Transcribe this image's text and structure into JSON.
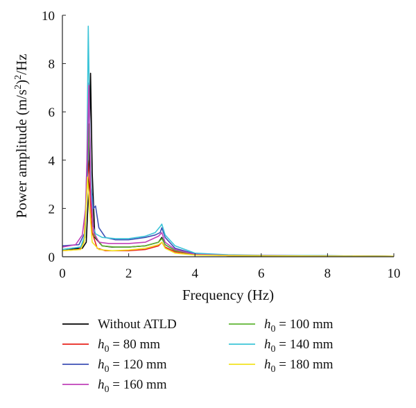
{
  "chart_data": {
    "type": "line",
    "xlabel": "Frequency (Hz)",
    "ylabel": "Power amplitude (m/s²)²/Hz",
    "xlim": [
      0,
      10
    ],
    "ylim": [
      0,
      10
    ],
    "xticks": [
      "0",
      "2",
      "4",
      "6",
      "8",
      "10"
    ],
    "yticks": [
      "0",
      "2",
      "4",
      "6",
      "8",
      "10"
    ],
    "grid": false,
    "legend_position": "bottom",
    "series": [
      {
        "name": "Without ATLD",
        "label_prefix": "",
        "label_sub": "",
        "label_suffix": "Without ATLD",
        "color": "#000000",
        "x": [
          0,
          0.6,
          0.72,
          0.8,
          0.85,
          0.9,
          0.98,
          1.2,
          1.5,
          2.0,
          2.5,
          2.9,
          3.0,
          3.1,
          3.4,
          4.0,
          5.0,
          6.0,
          8.0,
          10.0
        ],
        "y": [
          0.3,
          0.35,
          0.6,
          3.0,
          7.6,
          3.5,
          0.8,
          0.45,
          0.4,
          0.4,
          0.45,
          0.6,
          0.8,
          0.5,
          0.25,
          0.1,
          0.05,
          0.04,
          0.03,
          0.02
        ]
      },
      {
        "name": "h0 = 80 mm",
        "label_prefix": "h",
        "label_sub": "0",
        "label_suffix": " = 80 mm",
        "color": "#e8221c",
        "x": [
          0,
          0.5,
          0.65,
          0.72,
          0.77,
          0.82,
          0.9,
          1.05,
          1.3,
          2.0,
          2.5,
          2.9,
          3.0,
          3.1,
          3.4,
          4.0,
          5.0,
          6.0,
          8.0,
          10.0
        ],
        "y": [
          0.25,
          0.3,
          0.6,
          2.5,
          4.0,
          3.0,
          1.0,
          0.35,
          0.25,
          0.25,
          0.3,
          0.45,
          0.6,
          0.4,
          0.2,
          0.1,
          0.05,
          0.04,
          0.03,
          0.02
        ]
      },
      {
        "name": "h0 = 100 mm",
        "label_prefix": "h",
        "label_sub": "0",
        "label_suffix": " = 100 mm",
        "color": "#5fb532",
        "x": [
          0,
          0.55,
          0.68,
          0.75,
          0.8,
          0.86,
          0.95,
          1.2,
          1.6,
          2.0,
          2.5,
          2.9,
          3.0,
          3.1,
          3.4,
          4.0,
          5.0,
          6.0,
          8.0,
          10.0
        ],
        "y": [
          0.3,
          0.4,
          0.8,
          3.2,
          5.5,
          3.0,
          0.9,
          0.45,
          0.4,
          0.4,
          0.45,
          0.6,
          0.75,
          0.5,
          0.25,
          0.1,
          0.05,
          0.04,
          0.03,
          0.02
        ]
      },
      {
        "name": "h0 = 120 mm",
        "label_prefix": "h",
        "label_sub": "0",
        "label_suffix": " = 120 mm",
        "color": "#3b4fb5",
        "x": [
          0,
          0.5,
          0.68,
          0.75,
          0.8,
          0.86,
          0.94,
          1.0,
          1.1,
          1.3,
          1.6,
          2.0,
          2.5,
          2.8,
          2.95,
          3.0,
          3.1,
          3.4,
          4.0,
          5.0,
          6.0,
          8.0,
          10.0
        ],
        "y": [
          0.45,
          0.5,
          1.0,
          3.5,
          7.2,
          3.0,
          2.0,
          2.1,
          1.2,
          0.8,
          0.7,
          0.7,
          0.8,
          0.9,
          1.0,
          1.2,
          0.8,
          0.35,
          0.12,
          0.07,
          0.05,
          0.04,
          0.02
        ]
      },
      {
        "name": "h0 = 140 mm",
        "label_prefix": "h",
        "label_sub": "0",
        "label_suffix": " = 140 mm",
        "color": "#3cc4d8",
        "x": [
          0,
          0.55,
          0.68,
          0.74,
          0.78,
          0.84,
          0.92,
          1.0,
          1.2,
          1.6,
          2.0,
          2.5,
          2.8,
          2.95,
          3.0,
          3.1,
          3.4,
          4.0,
          5.0,
          6.0,
          8.0,
          10.0
        ],
        "y": [
          0.3,
          0.4,
          0.9,
          4.0,
          9.55,
          4.0,
          1.3,
          0.95,
          0.8,
          0.75,
          0.75,
          0.85,
          1.0,
          1.25,
          1.35,
          0.9,
          0.45,
          0.15,
          0.08,
          0.06,
          0.04,
          0.02
        ]
      },
      {
        "name": "h0 = 160 mm",
        "label_prefix": "h",
        "label_sub": "0",
        "label_suffix": " = 160 mm",
        "color": "#c040b8",
        "x": [
          0,
          0.4,
          0.6,
          0.7,
          0.76,
          0.8,
          0.86,
          0.95,
          1.1,
          1.4,
          2.0,
          2.5,
          2.9,
          3.0,
          3.1,
          3.4,
          4.0,
          5.0,
          6.0,
          8.0,
          10.0
        ],
        "y": [
          0.4,
          0.5,
          0.9,
          2.0,
          5.0,
          7.1,
          2.5,
          1.0,
          0.6,
          0.55,
          0.55,
          0.6,
          0.85,
          1.0,
          0.6,
          0.3,
          0.1,
          0.06,
          0.05,
          0.03,
          0.02
        ]
      },
      {
        "name": "h0 = 180 mm",
        "label_prefix": "h",
        "label_sub": "0",
        "label_suffix": " = 180 mm",
        "color": "#f2e21f",
        "x": [
          0,
          0.55,
          0.66,
          0.72,
          0.76,
          0.82,
          0.9,
          1.1,
          1.5,
          2.0,
          2.5,
          2.9,
          3.0,
          3.1,
          3.4,
          4.0,
          5.0,
          6.0,
          8.0,
          10.0
        ],
        "y": [
          0.25,
          0.3,
          0.6,
          2.2,
          3.3,
          2.0,
          0.6,
          0.3,
          0.25,
          0.28,
          0.35,
          0.5,
          0.6,
          0.35,
          0.15,
          0.07,
          0.05,
          0.04,
          0.03,
          0.02
        ]
      }
    ],
    "legend_order": [
      0,
      2,
      1,
      4,
      3,
      6,
      5
    ]
  }
}
